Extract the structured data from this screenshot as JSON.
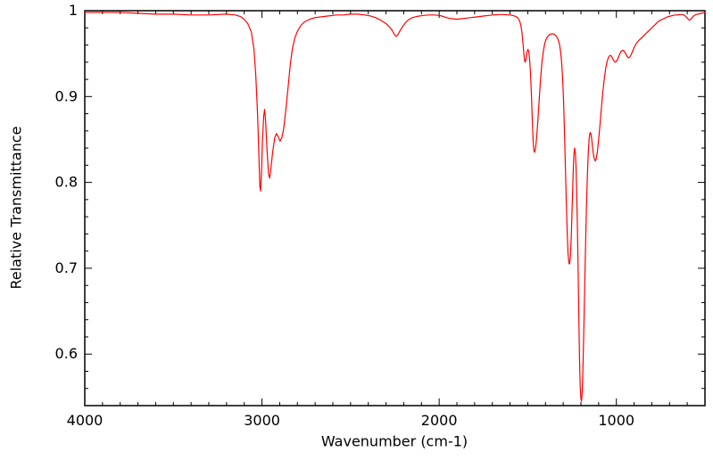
{
  "chart_data": {
    "type": "line",
    "xlabel": "Wavenumber (cm-1)",
    "ylabel": "Relative Transmittance",
    "line_color": "#ff0000",
    "axis_color": "#000000",
    "background": "#ffffff",
    "grid": false,
    "legend": false,
    "x_axis": {
      "min": 500,
      "max": 4000,
      "reversed": true,
      "major_ticks": [
        4000,
        3000,
        2000,
        1000
      ],
      "tick_labels": [
        "4000",
        "3000",
        "2000",
        "1000"
      ],
      "minor_tick_interval": 100
    },
    "y_axis": {
      "min": 0.54,
      "max": 1.0,
      "major_ticks": [
        0.6,
        0.7,
        0.8,
        0.9,
        1.0
      ],
      "tick_labels": [
        "0.6",
        "0.7",
        "0.8",
        "0.9",
        "1"
      ],
      "minor_tick_interval": 0.02
    },
    "series": [
      {
        "points": [
          [
            4000,
            0.998
          ],
          [
            3900,
            0.998
          ],
          [
            3800,
            0.998
          ],
          [
            3700,
            0.997
          ],
          [
            3600,
            0.996
          ],
          [
            3500,
            0.996
          ],
          [
            3400,
            0.995
          ],
          [
            3300,
            0.995
          ],
          [
            3200,
            0.996
          ],
          [
            3150,
            0.995
          ],
          [
            3120,
            0.993
          ],
          [
            3100,
            0.99
          ],
          [
            3080,
            0.985
          ],
          [
            3060,
            0.975
          ],
          [
            3045,
            0.955
          ],
          [
            3035,
            0.925
          ],
          [
            3025,
            0.88
          ],
          [
            3018,
            0.835
          ],
          [
            3012,
            0.795
          ],
          [
            3008,
            0.79
          ],
          [
            3003,
            0.81
          ],
          [
            2997,
            0.85
          ],
          [
            2990,
            0.878
          ],
          [
            2985,
            0.885
          ],
          [
            2979,
            0.87
          ],
          [
            2972,
            0.84
          ],
          [
            2963,
            0.81
          ],
          [
            2957,
            0.805
          ],
          [
            2950,
            0.815
          ],
          [
            2940,
            0.835
          ],
          [
            2928,
            0.852
          ],
          [
            2918,
            0.857
          ],
          [
            2908,
            0.853
          ],
          [
            2898,
            0.848
          ],
          [
            2888,
            0.852
          ],
          [
            2878,
            0.862
          ],
          [
            2865,
            0.885
          ],
          [
            2852,
            0.912
          ],
          [
            2840,
            0.938
          ],
          [
            2828,
            0.956
          ],
          [
            2815,
            0.968
          ],
          [
            2800,
            0.976
          ],
          [
            2780,
            0.983
          ],
          [
            2760,
            0.987
          ],
          [
            2730,
            0.99
          ],
          [
            2700,
            0.992
          ],
          [
            2660,
            0.993
          ],
          [
            2620,
            0.994
          ],
          [
            2580,
            0.995
          ],
          [
            2540,
            0.995
          ],
          [
            2500,
            0.996
          ],
          [
            2460,
            0.996
          ],
          [
            2420,
            0.995
          ],
          [
            2390,
            0.994
          ],
          [
            2360,
            0.992
          ],
          [
            2330,
            0.989
          ],
          [
            2300,
            0.985
          ],
          [
            2280,
            0.981
          ],
          [
            2265,
            0.977
          ],
          [
            2252,
            0.972
          ],
          [
            2243,
            0.97
          ],
          [
            2233,
            0.972
          ],
          [
            2220,
            0.977
          ],
          [
            2205,
            0.982
          ],
          [
            2190,
            0.986
          ],
          [
            2170,
            0.99
          ],
          [
            2150,
            0.992
          ],
          [
            2120,
            0.9935
          ],
          [
            2090,
            0.9945
          ],
          [
            2060,
            0.995
          ],
          [
            2030,
            0.995
          ],
          [
            2000,
            0.9945
          ],
          [
            1980,
            0.9935
          ],
          [
            1960,
            0.992
          ],
          [
            1940,
            0.991
          ],
          [
            1920,
            0.9905
          ],
          [
            1900,
            0.99
          ],
          [
            1880,
            0.9905
          ],
          [
            1860,
            0.991
          ],
          [
            1840,
            0.9915
          ],
          [
            1820,
            0.992
          ],
          [
            1800,
            0.9925
          ],
          [
            1780,
            0.993
          ],
          [
            1760,
            0.9935
          ],
          [
            1740,
            0.994
          ],
          [
            1720,
            0.9945
          ],
          [
            1700,
            0.995
          ],
          [
            1680,
            0.9952
          ],
          [
            1660,
            0.9955
          ],
          [
            1640,
            0.9955
          ],
          [
            1620,
            0.9952
          ],
          [
            1600,
            0.995
          ],
          [
            1585,
            0.9945
          ],
          [
            1570,
            0.9935
          ],
          [
            1558,
            0.992
          ],
          [
            1548,
            0.989
          ],
          [
            1540,
            0.984
          ],
          [
            1533,
            0.975
          ],
          [
            1527,
            0.962
          ],
          [
            1522,
            0.95
          ],
          [
            1518,
            0.942
          ],
          [
            1514,
            0.94
          ],
          [
            1509,
            0.945
          ],
          [
            1504,
            0.952
          ],
          [
            1499,
            0.955
          ],
          [
            1494,
            0.952
          ],
          [
            1489,
            0.942
          ],
          [
            1484,
            0.925
          ],
          [
            1479,
            0.9
          ],
          [
            1474,
            0.87
          ],
          [
            1469,
            0.845
          ],
          [
            1465,
            0.837
          ],
          [
            1461,
            0.835
          ],
          [
            1456,
            0.84
          ],
          [
            1450,
            0.852
          ],
          [
            1443,
            0.872
          ],
          [
            1436,
            0.895
          ],
          [
            1428,
            0.92
          ],
          [
            1420,
            0.94
          ],
          [
            1412,
            0.953
          ],
          [
            1404,
            0.962
          ],
          [
            1396,
            0.967
          ],
          [
            1388,
            0.97
          ],
          [
            1378,
            0.972
          ],
          [
            1368,
            0.973
          ],
          [
            1358,
            0.973
          ],
          [
            1348,
            0.972
          ],
          [
            1338,
            0.97
          ],
          [
            1330,
            0.967
          ],
          [
            1322,
            0.962
          ],
          [
            1315,
            0.953
          ],
          [
            1309,
            0.94
          ],
          [
            1303,
            0.92
          ],
          [
            1298,
            0.895
          ],
          [
            1293,
            0.86
          ],
          [
            1288,
            0.82
          ],
          [
            1283,
            0.78
          ],
          [
            1278,
            0.745
          ],
          [
            1273,
            0.718
          ],
          [
            1268,
            0.706
          ],
          [
            1264,
            0.705
          ],
          [
            1259,
            0.715
          ],
          [
            1254,
            0.74
          ],
          [
            1249,
            0.775
          ],
          [
            1244,
            0.81
          ],
          [
            1240,
            0.832
          ],
          [
            1236,
            0.84
          ],
          [
            1232,
            0.835
          ],
          [
            1228,
            0.82
          ],
          [
            1224,
            0.79
          ],
          [
            1220,
            0.75
          ],
          [
            1216,
            0.7
          ],
          [
            1212,
            0.645
          ],
          [
            1208,
            0.595
          ],
          [
            1204,
            0.562
          ],
          [
            1200,
            0.548
          ],
          [
            1197,
            0.545
          ],
          [
            1193,
            0.555
          ],
          [
            1189,
            0.58
          ],
          [
            1184,
            0.625
          ],
          [
            1179,
            0.675
          ],
          [
            1174,
            0.725
          ],
          [
            1169,
            0.77
          ],
          [
            1164,
            0.806
          ],
          [
            1159,
            0.832
          ],
          [
            1154,
            0.85
          ],
          [
            1149,
            0.858
          ],
          [
            1144,
            0.857
          ],
          [
            1139,
            0.85
          ],
          [
            1134,
            0.84
          ],
          [
            1129,
            0.832
          ],
          [
            1124,
            0.827
          ],
          [
            1119,
            0.825
          ],
          [
            1113,
            0.828
          ],
          [
            1107,
            0.836
          ],
          [
            1100,
            0.85
          ],
          [
            1092,
            0.868
          ],
          [
            1084,
            0.888
          ],
          [
            1076,
            0.906
          ],
          [
            1068,
            0.921
          ],
          [
            1060,
            0.933
          ],
          [
            1052,
            0.941
          ],
          [
            1044,
            0.946
          ],
          [
            1036,
            0.948
          ],
          [
            1028,
            0.947
          ],
          [
            1020,
            0.944
          ],
          [
            1012,
            0.941
          ],
          [
            1004,
            0.94
          ],
          [
            996,
            0.942
          ],
          [
            988,
            0.946
          ],
          [
            980,
            0.95
          ],
          [
            972,
            0.953
          ],
          [
            964,
            0.954
          ],
          [
            956,
            0.953
          ],
          [
            948,
            0.95
          ],
          [
            940,
            0.947
          ],
          [
            932,
            0.945
          ],
          [
            924,
            0.946
          ],
          [
            916,
            0.949
          ],
          [
            908,
            0.953
          ],
          [
            900,
            0.957
          ],
          [
            890,
            0.961
          ],
          [
            880,
            0.964
          ],
          [
            870,
            0.966
          ],
          [
            860,
            0.968
          ],
          [
            850,
            0.97
          ],
          [
            840,
            0.972
          ],
          [
            830,
            0.974
          ],
          [
            820,
            0.976
          ],
          [
            810,
            0.978
          ],
          [
            800,
            0.98
          ],
          [
            790,
            0.982
          ],
          [
            780,
            0.984
          ],
          [
            770,
            0.986
          ],
          [
            760,
            0.988
          ],
          [
            750,
            0.989
          ],
          [
            740,
            0.99
          ],
          [
            730,
            0.991
          ],
          [
            720,
            0.992
          ],
          [
            710,
            0.993
          ],
          [
            700,
            0.9935
          ],
          [
            690,
            0.994
          ],
          [
            680,
            0.9945
          ],
          [
            670,
            0.995
          ],
          [
            660,
            0.995
          ],
          [
            650,
            0.9952
          ],
          [
            640,
            0.9955
          ],
          [
            630,
            0.9955
          ],
          [
            620,
            0.995
          ],
          [
            612,
            0.994
          ],
          [
            605,
            0.9925
          ],
          [
            598,
            0.991
          ],
          [
            592,
            0.9895
          ],
          [
            586,
            0.989
          ],
          [
            580,
            0.99
          ],
          [
            574,
            0.9915
          ],
          [
            568,
            0.993
          ],
          [
            560,
            0.9945
          ],
          [
            550,
            0.9955
          ],
          [
            540,
            0.996
          ],
          [
            530,
            0.9965
          ],
          [
            520,
            0.997
          ],
          [
            510,
            0.9975
          ],
          [
            500,
            0.998
          ]
        ]
      }
    ]
  }
}
